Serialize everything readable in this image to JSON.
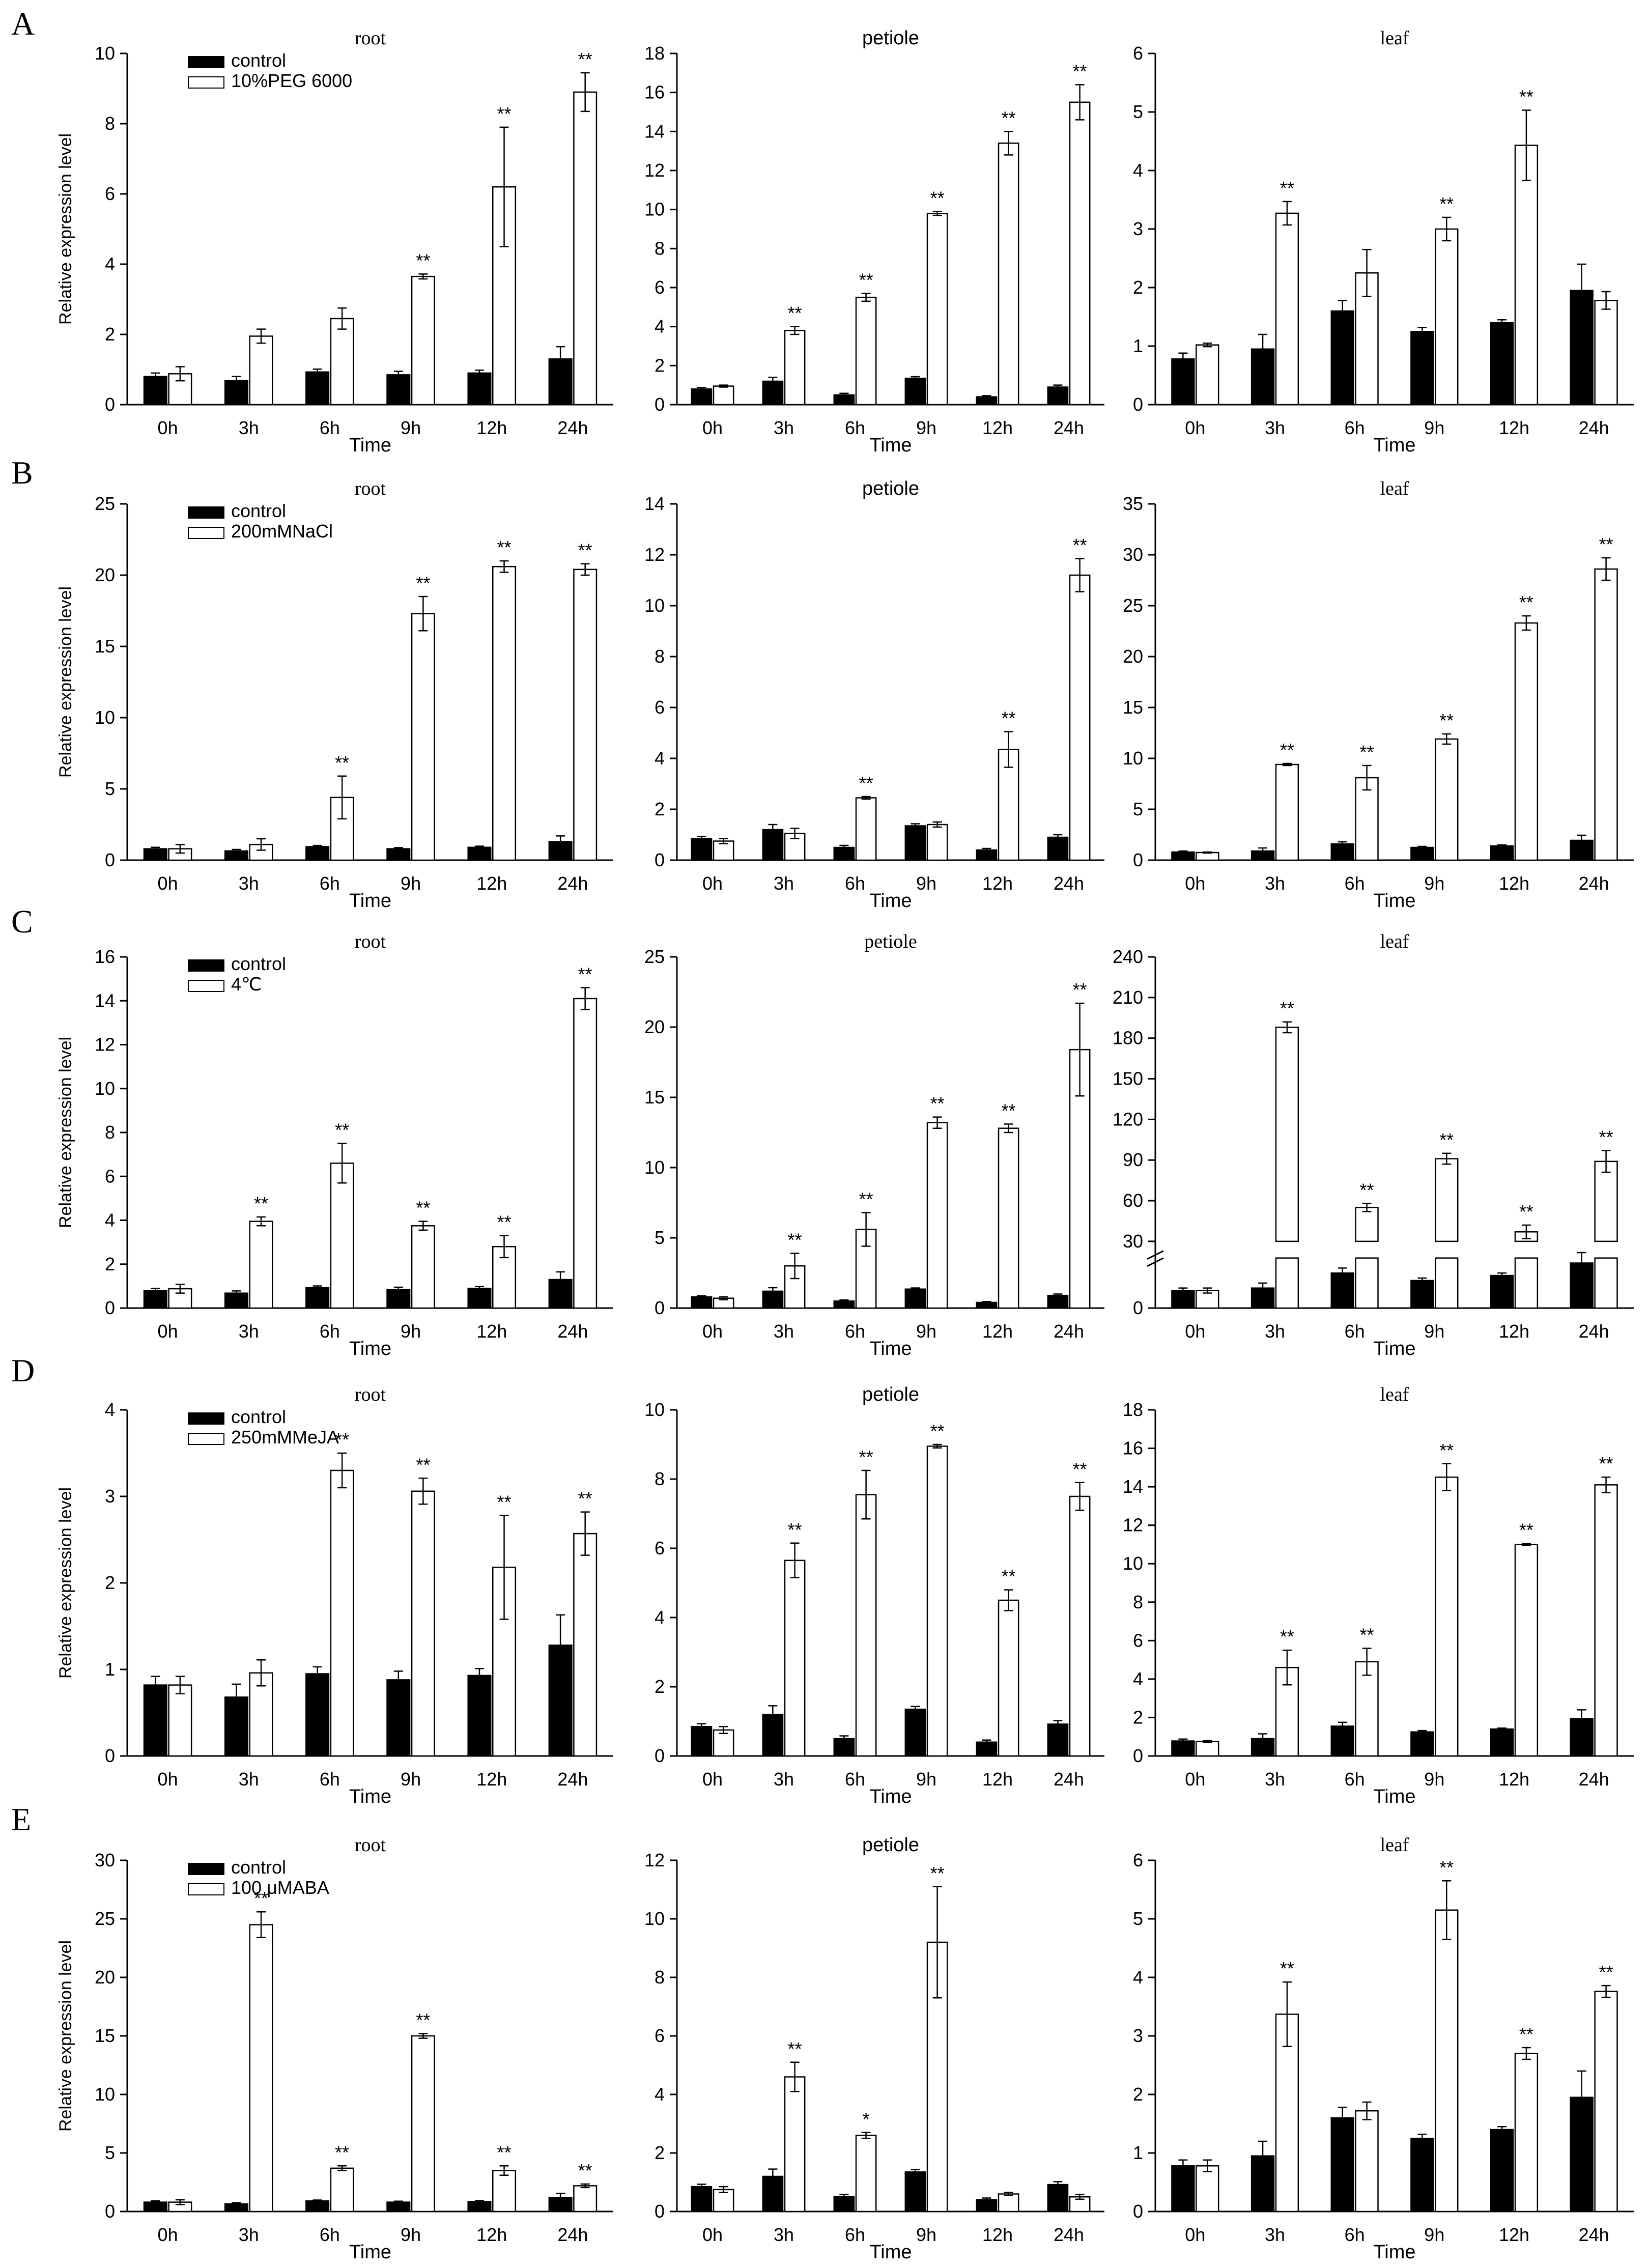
{
  "panels": [
    {
      "letter": "A",
      "treatment": "10%PEG 6000"
    },
    {
      "letter": "B",
      "treatment": "200mMNaCl"
    },
    {
      "letter": "C",
      "treatment": "4℃"
    },
    {
      "letter": "D",
      "treatment": "250mMMeJA"
    },
    {
      "letter": "E",
      "treatment": "100 μMABA"
    }
  ],
  "legend": {
    "control": "control"
  },
  "common": {
    "ylabel": "Relative expression level",
    "xlabel": "Time",
    "categories": [
      "0h",
      "3h",
      "6h",
      "9h",
      "12h",
      "24h"
    ]
  },
  "chart_data": [
    {
      "type": "bar",
      "panel": "A",
      "title": "root",
      "ylabel": "Relative expression level",
      "xlabel": "Time",
      "categories": [
        "0h",
        "3h",
        "6h",
        "9h",
        "12h",
        "24h"
      ],
      "ylim": [
        0,
        10
      ],
      "ticks": [
        0,
        2,
        4,
        6,
        8,
        10
      ],
      "series": [
        {
          "name": "control",
          "values": [
            0.8,
            0.68,
            0.93,
            0.85,
            0.9,
            1.3
          ],
          "errors": [
            0.1,
            0.12,
            0.08,
            0.1,
            0.08,
            0.35
          ]
        },
        {
          "name": "10%PEG 6000",
          "values": [
            0.88,
            1.95,
            2.45,
            3.65,
            6.2,
            8.9
          ],
          "errors": [
            0.2,
            0.2,
            0.3,
            0.07,
            1.7,
            0.55
          ]
        }
      ],
      "significance": [
        "",
        "",
        "",
        "**",
        "**",
        "**"
      ]
    },
    {
      "type": "bar",
      "panel": "A",
      "title": "petiole",
      "xlabel": "Time",
      "categories": [
        "0h",
        "3h",
        "6h",
        "9h",
        "12h",
        "24h"
      ],
      "ylim": [
        0,
        18
      ],
      "ticks": [
        0,
        2,
        4,
        6,
        8,
        10,
        12,
        14,
        16,
        18
      ],
      "series": [
        {
          "name": "control",
          "values": [
            0.8,
            1.2,
            0.5,
            1.35,
            0.4,
            0.9
          ],
          "errors": [
            0.08,
            0.2,
            0.08,
            0.08,
            0.06,
            0.1
          ]
        },
        {
          "name": "10%PEG 6000",
          "values": [
            0.95,
            3.8,
            5.5,
            9.8,
            13.4,
            15.5
          ],
          "errors": [
            0.05,
            0.2,
            0.2,
            0.1,
            0.6,
            0.9
          ]
        }
      ],
      "significance": [
        "",
        "**",
        "**",
        "**",
        "**",
        "**"
      ]
    },
    {
      "type": "bar",
      "panel": "A",
      "title": "leaf",
      "xlabel": "Time",
      "categories": [
        "0h",
        "3h",
        "6h",
        "9h",
        "12h",
        "24h"
      ],
      "ylim": [
        0,
        6
      ],
      "ticks": [
        0,
        1,
        2,
        3,
        4,
        5,
        6
      ],
      "series": [
        {
          "name": "control",
          "values": [
            0.78,
            0.95,
            1.6,
            1.25,
            1.4,
            1.95
          ],
          "errors": [
            0.1,
            0.25,
            0.18,
            0.07,
            0.05,
            0.45
          ]
        },
        {
          "name": "10%PEG 6000",
          "values": [
            1.02,
            3.27,
            2.25,
            3.0,
            4.43,
            1.78
          ],
          "errors": [
            0.03,
            0.2,
            0.4,
            0.2,
            0.6,
            0.15
          ]
        }
      ],
      "significance": [
        "",
        "**",
        "",
        "**",
        "**",
        ""
      ]
    },
    {
      "type": "bar",
      "panel": "B",
      "title": "root",
      "ylabel": "Relative expression level",
      "xlabel": "Time",
      "categories": [
        "0h",
        "3h",
        "6h",
        "9h",
        "12h",
        "24h"
      ],
      "ylim": [
        0,
        25
      ],
      "ticks": [
        0,
        5,
        10,
        15,
        20,
        25
      ],
      "series": [
        {
          "name": "control",
          "values": [
            0.8,
            0.65,
            0.95,
            0.8,
            0.9,
            1.3
          ],
          "errors": [
            0.1,
            0.1,
            0.08,
            0.08,
            0.08,
            0.4
          ]
        },
        {
          "name": "200mMNaCl",
          "values": [
            0.8,
            1.1,
            4.4,
            17.3,
            20.6,
            20.4
          ],
          "errors": [
            0.3,
            0.4,
            1.5,
            1.2,
            0.4,
            0.4
          ]
        }
      ],
      "significance": [
        "",
        "",
        "**",
        "**",
        "**",
        "**"
      ]
    },
    {
      "type": "bar",
      "panel": "B",
      "title": "petiole",
      "xlabel": "Time",
      "categories": [
        "0h",
        "3h",
        "6h",
        "9h",
        "12h",
        "24h"
      ],
      "ylim": [
        0,
        14
      ],
      "ticks": [
        0,
        2,
        4,
        6,
        8,
        10,
        12,
        14
      ],
      "series": [
        {
          "name": "control",
          "values": [
            0.85,
            1.2,
            0.5,
            1.35,
            0.4,
            0.9
          ],
          "errors": [
            0.08,
            0.2,
            0.08,
            0.08,
            0.06,
            0.1
          ]
        },
        {
          "name": "200mMNaCl",
          "values": [
            0.75,
            1.05,
            2.45,
            1.4,
            4.35,
            11.2
          ],
          "errors": [
            0.1,
            0.2,
            0.05,
            0.1,
            0.7,
            0.65
          ]
        }
      ],
      "significance": [
        "",
        "",
        "**",
        "",
        "**",
        "**"
      ]
    },
    {
      "type": "bar",
      "panel": "B",
      "title": "leaf",
      "xlabel": "Time",
      "categories": [
        "0h",
        "3h",
        "6h",
        "9h",
        "12h",
        "24h"
      ],
      "ylim": [
        0,
        35
      ],
      "ticks": [
        0,
        5,
        10,
        15,
        20,
        25,
        30,
        35
      ],
      "series": [
        {
          "name": "control",
          "values": [
            0.8,
            0.9,
            1.6,
            1.25,
            1.4,
            1.95
          ],
          "errors": [
            0.1,
            0.3,
            0.2,
            0.1,
            0.1,
            0.5
          ]
        },
        {
          "name": "200mMNaCl",
          "values": [
            0.75,
            9.4,
            8.1,
            11.9,
            23.3,
            28.6
          ],
          "errors": [
            0.05,
            0.1,
            1.2,
            0.5,
            0.7,
            1.1
          ]
        }
      ],
      "significance": [
        "",
        "**",
        "**",
        "**",
        "**",
        "**"
      ]
    },
    {
      "type": "bar",
      "panel": "C",
      "title": "root",
      "ylabel": "Relative expression level",
      "xlabel": "Time",
      "categories": [
        "0h",
        "3h",
        "6h",
        "9h",
        "12h",
        "24h"
      ],
      "ylim": [
        0,
        16
      ],
      "ticks": [
        0,
        2,
        4,
        6,
        8,
        10,
        12,
        14,
        16
      ],
      "series": [
        {
          "name": "control",
          "values": [
            0.8,
            0.68,
            0.93,
            0.85,
            0.9,
            1.3
          ],
          "errors": [
            0.1,
            0.1,
            0.08,
            0.1,
            0.08,
            0.35
          ]
        },
        {
          "name": "4℃",
          "values": [
            0.88,
            3.95,
            6.6,
            3.75,
            2.8,
            14.1
          ],
          "errors": [
            0.2,
            0.2,
            0.9,
            0.2,
            0.5,
            0.5
          ]
        }
      ],
      "significance": [
        "",
        "**",
        "**",
        "**",
        "**",
        "**"
      ]
    },
    {
      "type": "bar",
      "panel": "C",
      "title": "petiole",
      "xlabel": "Time",
      "categories": [
        "0h",
        "3h",
        "6h",
        "9h",
        "12h",
        "24h"
      ],
      "ylim": [
        0,
        25
      ],
      "ticks": [
        0,
        5,
        10,
        15,
        20,
        25
      ],
      "series": [
        {
          "name": "control",
          "values": [
            0.8,
            1.2,
            0.5,
            1.35,
            0.4,
            0.9
          ],
          "errors": [
            0.08,
            0.25,
            0.08,
            0.08,
            0.06,
            0.1
          ]
        },
        {
          "name": "4℃",
          "values": [
            0.7,
            3.0,
            5.6,
            13.2,
            12.8,
            18.4
          ],
          "errors": [
            0.1,
            0.9,
            1.2,
            0.4,
            0.3,
            3.3
          ]
        }
      ],
      "significance": [
        "",
        "**",
        "**",
        "**",
        "**",
        "**"
      ]
    },
    {
      "type": "bar",
      "panel": "C",
      "title": "leaf",
      "xlabel": "Time",
      "categories": [
        "0h",
        "3h",
        "6h",
        "9h",
        "12h",
        "24h"
      ],
      "ylim": [
        0,
        240
      ],
      "ticks": [
        0,
        30,
        60,
        90,
        120,
        150,
        180,
        210,
        240
      ],
      "axis_break": [
        20,
        30
      ],
      "note": "y axis broken between 0 and 30; bars above 30 drawn as a separate segment",
      "series": [
        {
          "name": "control",
          "values": [
            7,
            8,
            14,
            11,
            13,
            18
          ],
          "errors": [
            1,
            2,
            2,
            1,
            1,
            4
          ]
        },
        {
          "name": "4℃",
          "values": [
            7,
            188,
            55,
            91,
            37,
            89
          ],
          "errors": [
            1,
            4,
            3,
            4,
            5,
            8
          ]
        }
      ],
      "significance": [
        "",
        "**",
        "**",
        "**",
        "**",
        "**"
      ]
    },
    {
      "type": "bar",
      "panel": "D",
      "title": "root",
      "ylabel": "Relative expression level",
      "xlabel": "Time",
      "categories": [
        "0h",
        "3h",
        "6h",
        "9h",
        "12h",
        "24h"
      ],
      "ylim": [
        0,
        4
      ],
      "ticks": [
        0,
        1,
        2,
        3,
        4
      ],
      "series": [
        {
          "name": "control",
          "values": [
            0.82,
            0.68,
            0.95,
            0.88,
            0.93,
            1.28
          ],
          "errors": [
            0.1,
            0.15,
            0.08,
            0.1,
            0.08,
            0.35
          ]
        },
        {
          "name": "250mMMeJA",
          "values": [
            0.82,
            0.96,
            3.3,
            3.06,
            2.18,
            2.57
          ],
          "errors": [
            0.1,
            0.15,
            0.2,
            0.15,
            0.6,
            0.25
          ]
        }
      ],
      "significance": [
        "",
        "",
        "**",
        "**",
        "**",
        "**"
      ]
    },
    {
      "type": "bar",
      "panel": "D",
      "title": "petiole",
      "xlabel": "Time",
      "categories": [
        "0h",
        "3h",
        "6h",
        "9h",
        "12h",
        "24h"
      ],
      "ylim": [
        0,
        10
      ],
      "ticks": [
        0,
        2,
        4,
        6,
        8,
        10
      ],
      "series": [
        {
          "name": "control",
          "values": [
            0.85,
            1.2,
            0.5,
            1.35,
            0.4,
            0.92
          ],
          "errors": [
            0.08,
            0.25,
            0.08,
            0.08,
            0.06,
            0.1
          ]
        },
        {
          "name": "250mMMeJA",
          "values": [
            0.75,
            5.65,
            7.55,
            8.95,
            4.5,
            7.5
          ],
          "errors": [
            0.1,
            0.5,
            0.7,
            0.05,
            0.3,
            0.4
          ]
        }
      ],
      "significance": [
        "",
        "**",
        "**",
        "**",
        "**",
        "**"
      ]
    },
    {
      "type": "bar",
      "panel": "D",
      "title": "leaf",
      "xlabel": "Time",
      "categories": [
        "0h",
        "3h",
        "6h",
        "9h",
        "12h",
        "24h"
      ],
      "ylim": [
        0,
        18
      ],
      "ticks": [
        0,
        2,
        4,
        6,
        8,
        10,
        12,
        14,
        16,
        18
      ],
      "series": [
        {
          "name": "control",
          "values": [
            0.78,
            0.9,
            1.55,
            1.25,
            1.4,
            1.95
          ],
          "errors": [
            0.1,
            0.25,
            0.2,
            0.07,
            0.05,
            0.45
          ]
        },
        {
          "name": "250mMMeJA",
          "values": [
            0.75,
            4.6,
            4.9,
            14.5,
            11.0,
            14.1
          ],
          "errors": [
            0.05,
            0.9,
            0.7,
            0.7,
            0.05,
            0.4
          ]
        }
      ],
      "significance": [
        "",
        "**",
        "**",
        "**",
        "**",
        "**"
      ]
    },
    {
      "type": "bar",
      "panel": "E",
      "title": "root",
      "ylabel": "Relative expression level",
      "xlabel": "Time",
      "categories": [
        "0h",
        "3h",
        "6h",
        "9h",
        "12h",
        "24h"
      ],
      "ylim": [
        0,
        30
      ],
      "ticks": [
        0,
        5,
        10,
        15,
        20,
        25,
        30
      ],
      "series": [
        {
          "name": "control",
          "values": [
            0.8,
            0.65,
            0.9,
            0.8,
            0.85,
            1.2
          ],
          "errors": [
            0.1,
            0.1,
            0.08,
            0.08,
            0.08,
            0.35
          ]
        },
        {
          "name": "100 μMABA",
          "values": [
            0.8,
            24.5,
            3.7,
            15.0,
            3.5,
            2.2
          ],
          "errors": [
            0.2,
            1.1,
            0.2,
            0.2,
            0.4,
            0.15
          ]
        }
      ],
      "significance": [
        "",
        "**",
        "**",
        "**",
        "**",
        "**"
      ]
    },
    {
      "type": "bar",
      "panel": "E",
      "title": "petiole",
      "xlabel": "Time",
      "categories": [
        "0h",
        "3h",
        "6h",
        "9h",
        "12h",
        "24h"
      ],
      "ylim": [
        0,
        12
      ],
      "ticks": [
        0,
        2,
        4,
        6,
        8,
        10,
        12
      ],
      "series": [
        {
          "name": "control",
          "values": [
            0.85,
            1.2,
            0.5,
            1.35,
            0.4,
            0.92
          ],
          "errors": [
            0.08,
            0.25,
            0.08,
            0.08,
            0.06,
            0.1
          ]
        },
        {
          "name": "100 μMABA",
          "values": [
            0.75,
            4.6,
            2.6,
            9.2,
            0.6,
            0.5
          ],
          "errors": [
            0.1,
            0.5,
            0.1,
            1.9,
            0.05,
            0.08
          ]
        }
      ],
      "significance": [
        "",
        "**",
        "*",
        "**",
        "",
        ""
      ]
    },
    {
      "type": "bar",
      "panel": "E",
      "title": "leaf",
      "xlabel": "Time",
      "categories": [
        "0h",
        "3h",
        "6h",
        "9h",
        "12h",
        "24h"
      ],
      "ylim": [
        0,
        6
      ],
      "ticks": [
        0,
        1,
        2,
        3,
        4,
        5,
        6
      ],
      "series": [
        {
          "name": "control",
          "values": [
            0.78,
            0.95,
            1.6,
            1.25,
            1.4,
            1.95
          ],
          "errors": [
            0.1,
            0.25,
            0.18,
            0.07,
            0.05,
            0.45
          ]
        },
        {
          "name": "100 μMABA",
          "values": [
            0.78,
            3.37,
            1.72,
            5.15,
            2.7,
            3.76
          ],
          "errors": [
            0.1,
            0.55,
            0.15,
            0.5,
            0.1,
            0.1
          ]
        }
      ],
      "significance": [
        "",
        "**",
        "",
        "**",
        "**",
        "**"
      ]
    }
  ]
}
